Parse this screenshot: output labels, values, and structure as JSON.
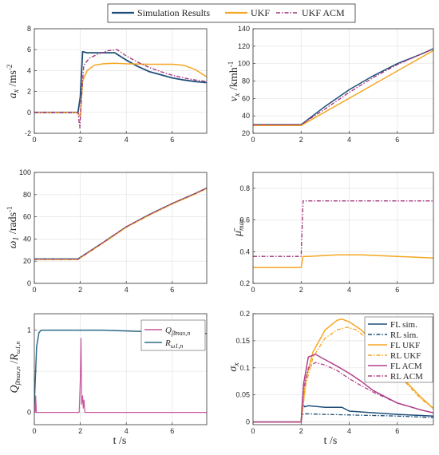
{
  "legend_top": [
    {
      "label": "Simulation Results",
      "color": "#1f4e79",
      "dash": "solid"
    },
    {
      "label": "UKF",
      "color": "#f5a623",
      "dash": "solid"
    },
    {
      "label": "UKF ACM",
      "color": "#a0307a",
      "dash": "dashdot"
    }
  ],
  "xlabel": "t /s",
  "chart_data": [
    {
      "type": "line",
      "id": "ax",
      "ylabel": "a_x /ms^-2",
      "xlim": [
        0,
        7.5
      ],
      "ylim": [
        -2,
        8
      ],
      "xticks": [
        0,
        2,
        4,
        6
      ],
      "yticks": [
        -2,
        0,
        2,
        4,
        6,
        8
      ],
      "grid": true,
      "series": [
        {
          "name": "Simulation Results",
          "color": "#1f4e79",
          "width": 1.8,
          "dash": "",
          "x": [
            0,
            1.9,
            2.0,
            2.1,
            2.3,
            3.5,
            4,
            4.5,
            5,
            5.5,
            6,
            6.5,
            7,
            7.5
          ],
          "y": [
            0,
            0,
            1.5,
            5.8,
            5.7,
            5.7,
            5.0,
            4.4,
            3.9,
            3.6,
            3.3,
            3.1,
            2.95,
            2.85
          ]
        },
        {
          "name": "UKF",
          "color": "#f5a623",
          "width": 1.5,
          "dash": "",
          "x": [
            0,
            1.9,
            2.0,
            2.1,
            2.3,
            2.6,
            3.0,
            3.5,
            4,
            5,
            6,
            6.5,
            7,
            7.5
          ],
          "y": [
            0,
            0,
            -0.5,
            3.0,
            4.0,
            4.5,
            4.65,
            4.7,
            4.65,
            4.6,
            4.6,
            4.5,
            4.1,
            3.4
          ]
        },
        {
          "name": "UKF ACM",
          "color": "#a0307a",
          "width": 1.3,
          "dash": "5,2,1.5,2",
          "x": [
            0,
            1.9,
            1.98,
            2.05,
            2.15,
            2.4,
            2.8,
            3.2,
            3.6,
            4.0,
            4.5,
            5,
            5.5,
            6,
            6.5,
            7,
            7.5
          ],
          "y": [
            0,
            0,
            -1.5,
            1.5,
            4.5,
            5.2,
            5.6,
            5.9,
            6.0,
            5.4,
            4.8,
            4.3,
            3.9,
            3.55,
            3.3,
            3.1,
            2.95
          ]
        }
      ]
    },
    {
      "type": "line",
      "id": "vx",
      "ylabel": "v_x /kmh^-1",
      "xlim": [
        0,
        7.5
      ],
      "ylim": [
        20,
        140
      ],
      "xticks": [
        0,
        2,
        4,
        6
      ],
      "yticks": [
        20,
        40,
        60,
        80,
        100,
        120,
        140
      ],
      "grid": true,
      "series": [
        {
          "name": "Simulation Results",
          "color": "#1f4e79",
          "width": 1.5,
          "dash": "",
          "x": [
            0,
            2,
            3,
            4,
            5,
            6,
            7,
            7.5
          ],
          "y": [
            30,
            30,
            51,
            70,
            86,
            100,
            111,
            117
          ]
        },
        {
          "name": "UKF",
          "color": "#f5a623",
          "width": 1.5,
          "dash": "",
          "x": [
            0,
            2,
            7.5
          ],
          "y": [
            29,
            29,
            115
          ]
        },
        {
          "name": "UKF ACM",
          "color": "#a0307a",
          "width": 1.3,
          "dash": "5,2,1.5,2",
          "x": [
            0,
            2,
            3,
            4,
            5,
            6,
            7,
            7.5
          ],
          "y": [
            30,
            30,
            48,
            67,
            84,
            99,
            111,
            117
          ]
        }
      ]
    },
    {
      "type": "line",
      "id": "omega",
      "ylabel": "ω_1 /rads^-1",
      "xlim": [
        0,
        7.5
      ],
      "ylim": [
        0,
        100
      ],
      "xticks": [
        0,
        2,
        4,
        6
      ],
      "yticks": [
        0,
        20,
        40,
        60,
        80,
        100
      ],
      "grid": true,
      "series": [
        {
          "name": "Simulation Results",
          "color": "#1f4e79",
          "width": 1.5,
          "dash": "",
          "x": [
            0,
            1.9,
            3,
            4,
            5,
            6,
            7,
            7.5
          ],
          "y": [
            22,
            22,
            37,
            51,
            62,
            72,
            81,
            86
          ]
        },
        {
          "name": "UKF",
          "color": "#f5a623",
          "width": 1.3,
          "dash": "",
          "x": [
            0,
            1.9,
            3,
            4,
            5,
            6,
            7,
            7.5
          ],
          "y": [
            21.5,
            21.5,
            36.5,
            50.5,
            61.5,
            71.5,
            80.5,
            85.5
          ]
        },
        {
          "name": "UKF ACM",
          "color": "#a0307a",
          "width": 1.2,
          "dash": "5,2,1.5,2",
          "x": [
            0,
            1.9,
            3,
            4,
            5,
            6,
            7,
            7.5
          ],
          "y": [
            21.8,
            21.8,
            37,
            51,
            62,
            72,
            81,
            86
          ]
        }
      ]
    },
    {
      "type": "line",
      "id": "mu",
      "ylabel": "μ̄_max",
      "xlim": [
        0,
        7.5
      ],
      "ylim": [
        0.2,
        0.9
      ],
      "xticks": [
        0,
        2,
        4,
        6
      ],
      "yticks": [
        0.2,
        0.4,
        0.6,
        0.8
      ],
      "grid": true,
      "series": [
        {
          "name": "UKF",
          "color": "#f5a623",
          "width": 1.5,
          "dash": "",
          "x": [
            0,
            2.0,
            2.08,
            2.3,
            3.5,
            4.5,
            6,
            7.5
          ],
          "y": [
            0.3,
            0.3,
            0.37,
            0.37,
            0.38,
            0.38,
            0.37,
            0.36
          ]
        },
        {
          "name": "UKF ACM",
          "color": "#a0307a",
          "width": 1.3,
          "dash": "5,2,1.5,2",
          "x": [
            0,
            2.0,
            2.08,
            7.5
          ],
          "y": [
            0.37,
            0.37,
            0.72,
            0.72
          ]
        }
      ]
    },
    {
      "type": "line",
      "id": "qr",
      "ylabel": "Q_β̄max,n /R_ω1,n",
      "xlim": [
        0,
        7.5
      ],
      "ylim": [
        -0.15,
        1.2
      ],
      "xticks": [
        0,
        2,
        4,
        6
      ],
      "yticks": [
        0,
        0.5,
        1
      ],
      "ytick_labels": [
        "0",
        "",
        "1"
      ],
      "grid": true,
      "legend": {
        "placement": "top-right",
        "entries": [
          {
            "label": "Q_β̄max,n",
            "color": "#c8559e"
          },
          {
            "label": "R_ω1,n",
            "color": "#2e6b8a"
          }
        ]
      },
      "series": [
        {
          "name": "Q_β̄max,n",
          "color": "#c8559e",
          "width": 1.2,
          "dash": "",
          "x": [
            0,
            0.04,
            0.06,
            0.09,
            1.95,
            2.0,
            2.03,
            2.06,
            2.1,
            2.13,
            2.16,
            2.2,
            2.25,
            7.5
          ],
          "y": [
            0.3,
            0.0,
            0.2,
            0,
            0,
            0.4,
            0.9,
            0.1,
            0.2,
            0.05,
            0.15,
            0.0,
            0,
            0
          ]
        },
        {
          "name": "R_ω1,n",
          "color": "#2e6b8a",
          "width": 1.5,
          "dash": "",
          "x": [
            0,
            0.1,
            0.2,
            0.3,
            0.45,
            1,
            2,
            3,
            4,
            5,
            6,
            7,
            7.5
          ],
          "y": [
            0.1,
            0.8,
            0.97,
            1.0,
            1.0,
            1.0,
            1.0,
            1.0,
            0.99,
            0.98,
            0.97,
            0.96,
            0.96
          ]
        }
      ]
    },
    {
      "type": "line",
      "id": "sigma",
      "ylabel": "σ_x",
      "xlim": [
        0,
        7.5
      ],
      "ylim": [
        -0.005,
        0.2
      ],
      "xticks": [
        0,
        2,
        4,
        6
      ],
      "yticks": [
        0,
        0.05,
        0.1,
        0.15,
        0.2
      ],
      "grid": true,
      "legend": {
        "placement": "top-right",
        "entries": [
          {
            "label": "FL sim.",
            "color": "#1f4e79",
            "dash": "solid"
          },
          {
            "label": "RL sim.",
            "color": "#1f4e79",
            "dash": "dashdot"
          },
          {
            "label": "FL UKF",
            "color": "#f5a623",
            "dash": "solid"
          },
          {
            "label": "RL UKF",
            "color": "#f5a623",
            "dash": "dashdot"
          },
          {
            "label": "FL ACM",
            "color": "#b0408a",
            "dash": "solid"
          },
          {
            "label": "RL ACM",
            "color": "#b0408a",
            "dash": "dashdot"
          }
        ]
      },
      "series": [
        {
          "name": "FL sim.",
          "color": "#1f4e79",
          "width": 1.5,
          "dash": "",
          "x": [
            0,
            2.0,
            2.05,
            2.15,
            2.3,
            3,
            3.7,
            4,
            5,
            6,
            7,
            7.5
          ],
          "y": [
            0,
            0,
            0.033,
            0.028,
            0.03,
            0.027,
            0.027,
            0.02,
            0.017,
            0.014,
            0.012,
            0.011
          ]
        },
        {
          "name": "RL sim.",
          "color": "#1f4e79",
          "width": 1.3,
          "dash": "5,2,1.5,2",
          "x": [
            0,
            2.0,
            2.05,
            2.2,
            3,
            4,
            5,
            6,
            7,
            7.5
          ],
          "y": [
            0,
            0,
            0.014,
            0.015,
            0.014,
            0.013,
            0.012,
            0.011,
            0.009,
            0.008
          ]
        },
        {
          "name": "FL UKF",
          "color": "#f5a623",
          "width": 1.5,
          "dash": "",
          "x": [
            0,
            2.0,
            2.2,
            2.5,
            3.0,
            3.5,
            3.7,
            4,
            4.5,
            5,
            5.5,
            6,
            6.5,
            7,
            7.5
          ],
          "y": [
            0,
            0,
            0.08,
            0.13,
            0.17,
            0.188,
            0.19,
            0.185,
            0.17,
            0.148,
            0.12,
            0.093,
            0.068,
            0.045,
            0.025
          ]
        },
        {
          "name": "RL UKF",
          "color": "#f5a623",
          "width": 1.3,
          "dash": "5,2,1.5,2",
          "x": [
            0,
            2.0,
            2.2,
            2.5,
            3.0,
            3.5,
            3.9,
            4.3,
            5,
            5.5,
            6,
            6.5,
            7,
            7.5
          ],
          "y": [
            0,
            0,
            0.07,
            0.12,
            0.155,
            0.17,
            0.175,
            0.17,
            0.145,
            0.118,
            0.09,
            0.065,
            0.042,
            0.025
          ]
        },
        {
          "name": "FL ACM",
          "color": "#b0408a",
          "width": 1.5,
          "dash": "",
          "x": [
            0,
            2.0,
            2.1,
            2.3,
            2.6,
            3,
            3.5,
            4,
            4.5,
            5,
            6,
            7,
            7.5
          ],
          "y": [
            0,
            0,
            0.07,
            0.12,
            0.125,
            0.115,
            0.103,
            0.09,
            0.075,
            0.058,
            0.035,
            0.022,
            0.017
          ]
        },
        {
          "name": "RL ACM",
          "color": "#b0408a",
          "width": 1.3,
          "dash": "5,2,1.5,2",
          "x": [
            0,
            2.0,
            2.1,
            2.3,
            2.6,
            3,
            3.5,
            4,
            4.5,
            5,
            6,
            7,
            7.5
          ],
          "y": [
            0,
            0,
            0.06,
            0.1,
            0.11,
            0.105,
            0.095,
            0.08,
            0.067,
            0.055,
            0.035,
            0.022,
            0.017
          ]
        }
      ]
    }
  ]
}
